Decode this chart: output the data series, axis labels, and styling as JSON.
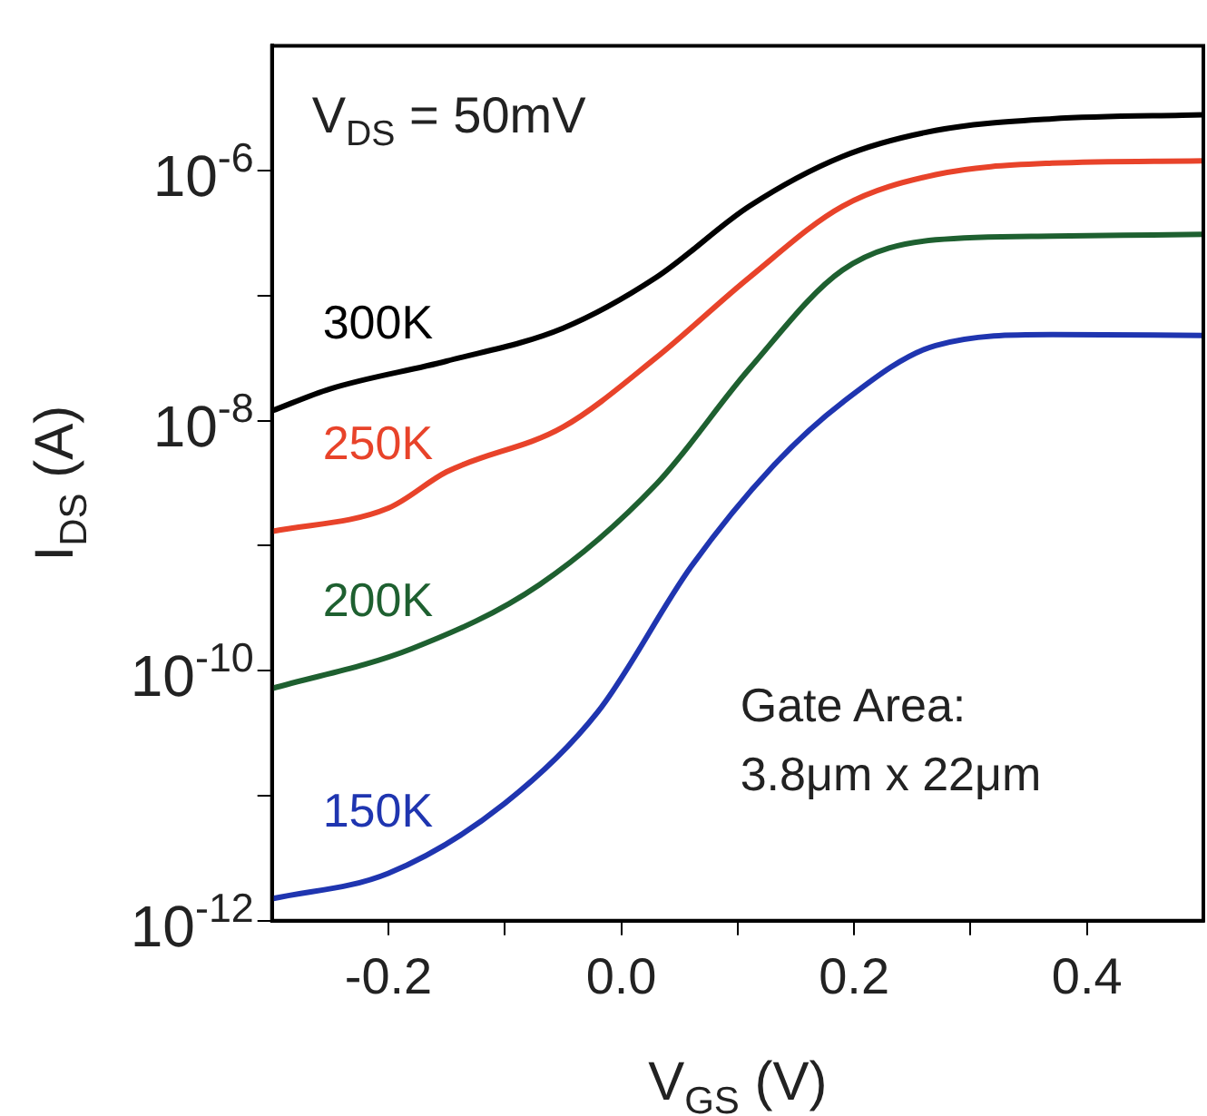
{
  "chart_data": {
    "type": "line",
    "xlabel": "V$_{GS}$ (V)",
    "ylabel": "I$_{DS}$ (A)",
    "log": "y",
    "grid": false,
    "legend": false,
    "marker": "none",
    "line_style": "solid",
    "xlim": [
      -0.3,
      0.5
    ],
    "ylim": [
      1e-12,
      1e-05
    ],
    "xticks": [
      {
        "value": -0.2,
        "label": "-0.2"
      },
      {
        "value": -0.1,
        "label": null
      },
      {
        "value": 0,
        "label": "0.0"
      },
      {
        "value": 0.1,
        "label": null
      },
      {
        "value": 0.2,
        "label": "0.2"
      },
      {
        "value": 0.3,
        "label": null
      },
      {
        "value": 0.4,
        "label": "0.4"
      }
    ],
    "yticks": [
      {
        "value": 1e-12,
        "label": "10$^{-12}$"
      },
      {
        "value": 1e-11,
        "label": null
      },
      {
        "value": 1e-10,
        "label": "10$^{-10}$"
      },
      {
        "value": 1e-09,
        "label": null
      },
      {
        "value": 1e-08,
        "label": "10$^{-8}$"
      },
      {
        "value": 1e-07,
        "label": null
      },
      {
        "value": 1e-06,
        "label": "10$^{-6}$"
      }
    ],
    "annotations": [
      "V$_{DS}$ = 50mV",
      "Gate Area:",
      "3.8μm x 22μm"
    ],
    "series": [
      {
        "name": "300K",
        "color": "#000000",
        "x": [
          -0.3,
          -0.25,
          -0.15,
          -0.05,
          0.03,
          0.11,
          0.19,
          0.27,
          0.37,
          0.5
        ],
        "values": [
          1.2e-08,
          1.8e-08,
          3e-08,
          5.5e-08,
          1.4e-07,
          5.2e-07,
          1.3e-06,
          2.1e-06,
          2.6e-06,
          2.8e-06
        ]
      },
      {
        "name": "250K",
        "color": "#e8432a",
        "x": [
          -0.3,
          -0.2,
          -0.15,
          -0.05,
          0.03,
          0.11,
          0.19,
          0.27,
          0.37,
          0.5
        ],
        "values": [
          1.3e-09,
          2e-09,
          3.9e-09,
          8.9e-09,
          3.2e-08,
          1.4e-07,
          5.2e-07,
          9.3e-07,
          1.15e-06,
          1.2e-06
        ]
      },
      {
        "name": "200K",
        "color": "#1e6030",
        "x": [
          -0.3,
          -0.18,
          -0.07,
          0.03,
          0.11,
          0.19,
          0.27,
          0.37,
          0.5
        ],
        "values": [
          7.2e-11,
          1.5e-10,
          4.9e-10,
          3.1e-09,
          2.6e-08,
          1.6e-07,
          2.8e-07,
          3e-07,
          3.1e-07
        ]
      },
      {
        "name": "150K",
        "color": "#1f35b0",
        "x": [
          -0.3,
          -0.2,
          -0.1,
          -0.02,
          0.06,
          0.13,
          0.19,
          0.27,
          0.37,
          0.5
        ],
        "values": [
          1.5e-12,
          2.4e-12,
          8.7e-12,
          4.7e-11,
          6.8e-10,
          4.3e-09,
          1.4e-08,
          4e-08,
          4.9e-08,
          4.8e-08
        ]
      }
    ]
  }
}
